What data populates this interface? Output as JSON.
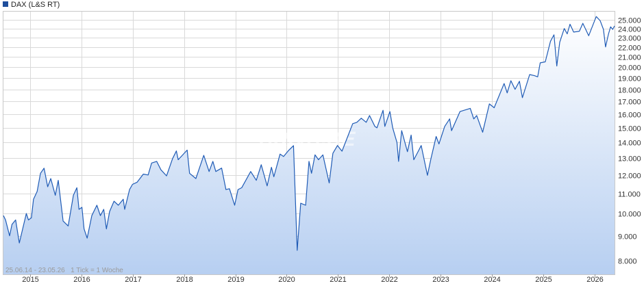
{
  "legend": {
    "label": "DAX (L&S RT)",
    "swatch_color": "#1f4e9c"
  },
  "footer_text": "25.06.14 - 23.05.26   1 Tick = 1 Woche",
  "watermark": "ARIVA.DE",
  "colors": {
    "line": "#1f5bb5",
    "fill_top": "#ffffff",
    "fill_bottom": "#b7cff1",
    "grid": "#d9d9d9",
    "axis_text": "#333333"
  },
  "chart_data": {
    "type": "area",
    "title": "",
    "xlabel": "",
    "ylabel": "",
    "scale": "log",
    "grid": true,
    "legend_position": "top-left",
    "x_range": [
      "2014-06-25",
      "2026-05-23"
    ],
    "ylim": [
      7500,
      26000
    ],
    "y_ticks": [
      8000,
      9000,
      10000,
      11000,
      12000,
      13000,
      14000,
      15000,
      16000,
      17000,
      18000,
      19000,
      20000,
      21000,
      22000,
      23000,
      24000,
      25000
    ],
    "y_tick_labels": [
      "8.000",
      "9.000",
      "10.000",
      "11.000",
      "12.000",
      "13.000",
      "14.000",
      "15.000",
      "16.000",
      "17.000",
      "18.000",
      "19.000",
      "20.000",
      "21.000",
      "22.000",
      "23.000",
      "24.000",
      "25.000"
    ],
    "x_ticks": [
      "2015-01-01",
      "2016-01-01",
      "2017-01-01",
      "2018-01-01",
      "2019-01-01",
      "2020-01-01",
      "2021-01-01",
      "2022-01-01",
      "2023-01-01",
      "2024-01-01",
      "2025-01-01",
      "2026-01-01"
    ],
    "x_tick_labels": [
      "2015",
      "2016",
      "2017",
      "2018",
      "2019",
      "2020",
      "2021",
      "2022",
      "2023",
      "2024",
      "2025",
      "2026"
    ],
    "series": [
      {
        "points": [
          [
            "2014-06-25",
            9900
          ],
          [
            "2014-07-10",
            9700
          ],
          [
            "2014-08-08",
            9000
          ],
          [
            "2014-08-25",
            9500
          ],
          [
            "2014-09-20",
            9700
          ],
          [
            "2014-10-16",
            8700
          ],
          [
            "2014-11-05",
            9200
          ],
          [
            "2014-12-05",
            10000
          ],
          [
            "2014-12-20",
            9700
          ],
          [
            "2015-01-10",
            9800
          ],
          [
            "2015-01-25",
            10700
          ],
          [
            "2015-02-20",
            11100
          ],
          [
            "2015-03-16",
            12100
          ],
          [
            "2015-04-10",
            12390
          ],
          [
            "2015-05-06",
            11350
          ],
          [
            "2015-05-28",
            11800
          ],
          [
            "2015-06-29",
            10900
          ],
          [
            "2015-07-20",
            11700
          ],
          [
            "2015-08-24",
            9650
          ],
          [
            "2015-09-29",
            9430
          ],
          [
            "2015-11-05",
            10900
          ],
          [
            "2015-11-30",
            11300
          ],
          [
            "2015-12-15",
            10200
          ],
          [
            "2016-01-05",
            10300
          ],
          [
            "2016-01-20",
            9300
          ],
          [
            "2016-02-11",
            8900
          ],
          [
            "2016-03-15",
            9900
          ],
          [
            "2016-04-20",
            10400
          ],
          [
            "2016-05-15",
            9900
          ],
          [
            "2016-06-08",
            10200
          ],
          [
            "2016-06-27",
            9300
          ],
          [
            "2016-07-20",
            10100
          ],
          [
            "2016-08-20",
            10600
          ],
          [
            "2016-09-20",
            10400
          ],
          [
            "2016-10-25",
            10700
          ],
          [
            "2016-11-04",
            10200
          ],
          [
            "2016-12-09",
            11200
          ],
          [
            "2016-12-30",
            11480
          ],
          [
            "2017-02-01",
            11600
          ],
          [
            "2017-03-17",
            12050
          ],
          [
            "2017-04-20",
            12000
          ],
          [
            "2017-05-15",
            12700
          ],
          [
            "2017-06-20",
            12800
          ],
          [
            "2017-07-20",
            12300
          ],
          [
            "2017-08-29",
            11950
          ],
          [
            "2017-10-10",
            12950
          ],
          [
            "2017-11-07",
            13450
          ],
          [
            "2017-11-20",
            12900
          ],
          [
            "2018-01-23",
            13500
          ],
          [
            "2018-02-09",
            12100
          ],
          [
            "2018-03-26",
            11800
          ],
          [
            "2018-05-21",
            13170
          ],
          [
            "2018-06-28",
            12200
          ],
          [
            "2018-07-25",
            12800
          ],
          [
            "2018-08-15",
            12200
          ],
          [
            "2018-09-25",
            12400
          ],
          [
            "2018-10-26",
            11200
          ],
          [
            "2018-11-20",
            11250
          ],
          [
            "2018-12-27",
            10400
          ],
          [
            "2019-01-20",
            11200
          ],
          [
            "2019-02-15",
            11300
          ],
          [
            "2019-04-20",
            12200
          ],
          [
            "2019-05-30",
            11700
          ],
          [
            "2019-07-04",
            12600
          ],
          [
            "2019-08-15",
            11400
          ],
          [
            "2019-09-15",
            12450
          ],
          [
            "2019-10-02",
            11900
          ],
          [
            "2019-11-15",
            13250
          ],
          [
            "2019-12-10",
            13100
          ],
          [
            "2020-01-17",
            13500
          ],
          [
            "2020-02-19",
            13790
          ],
          [
            "2020-03-16",
            8400
          ],
          [
            "2020-04-10",
            10500
          ],
          [
            "2020-05-15",
            10400
          ],
          [
            "2020-06-08",
            12800
          ],
          [
            "2020-06-26",
            12100
          ],
          [
            "2020-07-21",
            13200
          ],
          [
            "2020-08-15",
            12900
          ],
          [
            "2020-09-15",
            13200
          ],
          [
            "2020-10-30",
            11560
          ],
          [
            "2020-11-25",
            13300
          ],
          [
            "2020-12-28",
            13800
          ],
          [
            "2021-01-29",
            13430
          ],
          [
            "2021-03-15",
            14500
          ],
          [
            "2021-04-15",
            15300
          ],
          [
            "2021-05-15",
            15400
          ],
          [
            "2021-06-15",
            15700
          ],
          [
            "2021-07-20",
            15400
          ],
          [
            "2021-08-13",
            15900
          ],
          [
            "2021-09-20",
            15100
          ],
          [
            "2021-10-05",
            15000
          ],
          [
            "2021-11-17",
            16300
          ],
          [
            "2021-11-30",
            15100
          ],
          [
            "2022-01-05",
            16200
          ],
          [
            "2022-01-25",
            15000
          ],
          [
            "2022-02-24",
            14000
          ],
          [
            "2022-03-08",
            12800
          ],
          [
            "2022-03-30",
            14800
          ],
          [
            "2022-05-10",
            13400
          ],
          [
            "2022-06-05",
            14500
          ],
          [
            "2022-06-24",
            12900
          ],
          [
            "2022-07-30",
            13500
          ],
          [
            "2022-08-16",
            13800
          ],
          [
            "2022-09-29",
            11980
          ],
          [
            "2022-10-25",
            13000
          ],
          [
            "2022-11-30",
            14400
          ],
          [
            "2022-12-20",
            13900
          ],
          [
            "2023-01-30",
            15100
          ],
          [
            "2023-03-06",
            15650
          ],
          [
            "2023-03-20",
            14800
          ],
          [
            "2023-05-19",
            16200
          ],
          [
            "2023-07-31",
            16450
          ],
          [
            "2023-08-25",
            15650
          ],
          [
            "2023-09-15",
            15900
          ],
          [
            "2023-10-27",
            14690
          ],
          [
            "2023-12-14",
            16800
          ],
          [
            "2024-01-17",
            16500
          ],
          [
            "2024-03-28",
            18500
          ],
          [
            "2024-04-19",
            17700
          ],
          [
            "2024-05-15",
            18750
          ],
          [
            "2024-06-14",
            18000
          ],
          [
            "2024-07-15",
            18700
          ],
          [
            "2024-08-05",
            17300
          ],
          [
            "2024-09-26",
            19300
          ],
          [
            "2024-10-30",
            19200
          ],
          [
            "2024-11-22",
            19100
          ],
          [
            "2024-12-10",
            20400
          ],
          [
            "2025-01-15",
            20500
          ],
          [
            "2025-02-21",
            22600
          ],
          [
            "2025-03-18",
            23300
          ],
          [
            "2025-04-07",
            20100
          ],
          [
            "2025-04-28",
            22500
          ],
          [
            "2025-05-30",
            24000
          ],
          [
            "2025-06-20",
            23400
          ],
          [
            "2025-07-10",
            24500
          ],
          [
            "2025-08-05",
            23600
          ],
          [
            "2025-09-15",
            23700
          ],
          [
            "2025-10-09",
            24600
          ],
          [
            "2025-11-20",
            23200
          ],
          [
            "2025-12-15",
            24200
          ],
          [
            "2026-01-13",
            25400
          ],
          [
            "2026-02-10",
            24900
          ],
          [
            "2026-03-05",
            23900
          ],
          [
            "2026-03-20",
            22000
          ],
          [
            "2026-04-10",
            23400
          ],
          [
            "2026-04-25",
            24200
          ],
          [
            "2026-05-10",
            23900
          ],
          [
            "2026-05-23",
            24300
          ]
        ]
      }
    ]
  }
}
